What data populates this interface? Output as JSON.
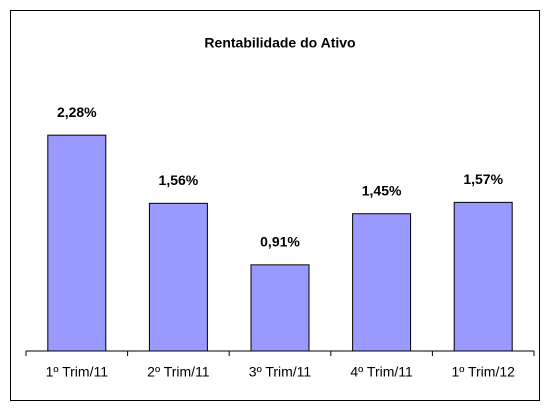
{
  "chart_data": {
    "type": "bar",
    "title": "Rentabilidade do Ativo",
    "categories": [
      "1º Trim/11",
      "2º Trim/11",
      "3º Trim/11",
      "4º Trim/11",
      "1º Trim/12"
    ],
    "values": [
      2.28,
      1.56,
      0.91,
      1.45,
      1.57
    ],
    "value_labels": [
      "2,28%",
      "1,56%",
      "0,91%",
      "1,45%",
      "1,57%"
    ],
    "color": "#9999ff",
    "ylim": [
      0,
      3
    ]
  }
}
